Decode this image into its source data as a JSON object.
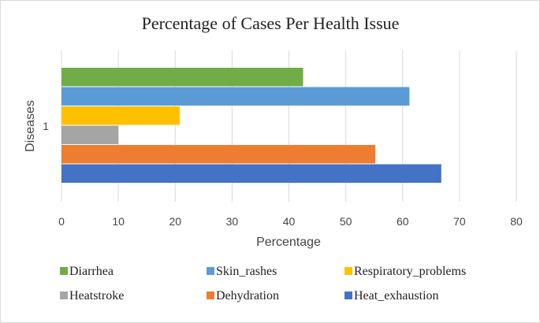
{
  "chart_data": {
    "type": "bar",
    "orientation": "horizontal",
    "title": "Percentage of Cases Per Health Issue",
    "xlabel": "Percentage",
    "ylabel": "Diseases",
    "categories": [
      "1"
    ],
    "xlim": [
      0,
      80
    ],
    "xticks": [
      0,
      10,
      20,
      30,
      40,
      50,
      60,
      70,
      80
    ],
    "grid": true,
    "legend_position": "bottom",
    "series": [
      {
        "name": "Heat_exhaustion",
        "values": [
          66.8
        ],
        "color": "#4472C4"
      },
      {
        "name": "Dehydration",
        "values": [
          55.2
        ],
        "color": "#ED7D31"
      },
      {
        "name": "Heatstroke",
        "values": [
          10.0
        ],
        "color": "#A5A5A5"
      },
      {
        "name": "Respiratory_problems",
        "values": [
          20.8
        ],
        "color": "#FFC000"
      },
      {
        "name": "Skin_rashes",
        "values": [
          61.2
        ],
        "color": "#5B9BD5"
      },
      {
        "name": "Diarrhea",
        "values": [
          42.5
        ],
        "color": "#70AD47"
      }
    ],
    "legend_order": [
      "Diarrhea",
      "Skin_rashes",
      "Respiratory_problems",
      "Heatstroke",
      "Dehydration",
      "Heat_exhaustion"
    ]
  }
}
